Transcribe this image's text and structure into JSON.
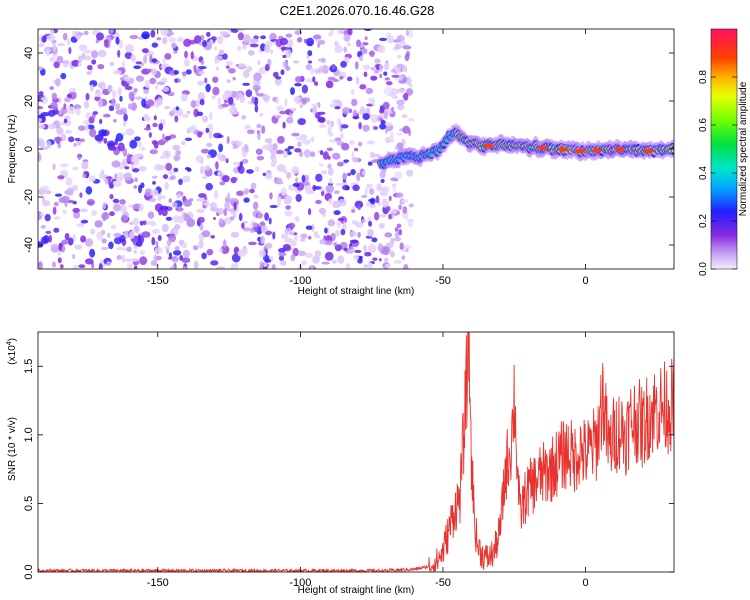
{
  "chart_data": [
    {
      "type": "heatmap",
      "title": "C2E1.2026.070.16.46.G28",
      "xlabel": "Height of straight line (km)",
      "ylabel": "Frequency (Hz)",
      "xlim": [
        -192,
        31
      ],
      "ylim": [
        -50,
        50
      ],
      "x_ticks": [
        -150,
        -100,
        -50,
        0
      ],
      "x_tick_labels": [
        "-150",
        "-100",
        "-50",
        "0"
      ],
      "y_ticks": [
        -40,
        -20,
        0,
        20,
        40
      ],
      "y_tick_labels": [
        "-40",
        "-20",
        "0",
        "20",
        "40"
      ],
      "colorbar": {
        "label": "Normalized spectral amplitude",
        "range": [
          0,
          1
        ],
        "ticks": [
          0.0,
          0.2,
          0.4,
          0.6,
          0.8
        ],
        "tick_labels": [
          "0.0",
          "0.2",
          "0.4",
          "0.6",
          "0.8"
        ]
      },
      "regions": [
        {
          "name": "noise",
          "x_range": [
            -192,
            -61
          ],
          "freq_range": [
            -50,
            50
          ],
          "amplitude_range": [
            0.02,
            0.25
          ]
        },
        {
          "name": "transition-track",
          "x_range": [
            -72,
            -45
          ],
          "center_freq_hz": [
            -6,
            -4,
            -3,
            0,
            5,
            8
          ],
          "amplitude_range": [
            0.2,
            0.5
          ]
        },
        {
          "name": "signal-track",
          "x_range": [
            -45,
            31
          ],
          "center_freq_hz": [
            0,
            2,
            1,
            0,
            0,
            0
          ],
          "amplitude_range": [
            0.3,
            0.85
          ]
        }
      ]
    },
    {
      "type": "line",
      "xlabel": "Height of straight line (km)",
      "ylabel": "SNR (10 * v/v)",
      "y_scale_label": "(x10",
      "y_scale_exp": "4",
      "y_scale_close": ")",
      "xlim": [
        -192,
        31
      ],
      "ylim": [
        0,
        1.75
      ],
      "x_ticks": [
        -150,
        -100,
        -50,
        0
      ],
      "x_tick_labels": [
        "-150",
        "-100",
        "-50",
        "0"
      ],
      "y_ticks": [
        0.0,
        0.5,
        1.0,
        1.5
      ],
      "y_tick_labels": [
        "0.0",
        "0.5",
        "1.0",
        "1.5"
      ],
      "color": "#e8322d",
      "series": [
        {
          "name": "SNR",
          "x": [
            -192,
            -150,
            -100,
            -70,
            -60,
            -55,
            -52,
            -50,
            -48,
            -46,
            -44,
            -43,
            -42,
            -41,
            -40,
            -39,
            -38,
            -36,
            -34,
            -32,
            -30,
            -28,
            -26,
            -25,
            -24,
            -23,
            -22,
            -20,
            -18,
            -16,
            -14,
            -12,
            -10,
            -8,
            -6,
            -4,
            -2,
            0,
            2,
            4,
            6,
            8,
            10,
            12,
            14,
            16,
            18,
            20,
            22,
            24,
            26,
            28,
            31
          ],
          "y": [
            0.01,
            0.01,
            0.01,
            0.01,
            0.02,
            0.04,
            0.08,
            0.15,
            0.3,
            0.45,
            0.55,
            0.9,
            1.25,
            1.75,
            0.8,
            0.4,
            0.2,
            0.12,
            0.1,
            0.15,
            0.3,
            0.75,
            0.95,
            1.3,
            0.8,
            0.4,
            0.5,
            0.6,
            0.65,
            0.7,
            0.72,
            0.75,
            0.8,
            0.85,
            0.88,
            0.82,
            0.9,
            0.85,
            0.9,
            0.95,
            1.3,
            0.9,
            1.0,
            1.05,
            1.0,
            1.1,
            1.12,
            1.05,
            1.15,
            1.18,
            1.2,
            1.2,
            1.22
          ]
        }
      ]
    }
  ]
}
